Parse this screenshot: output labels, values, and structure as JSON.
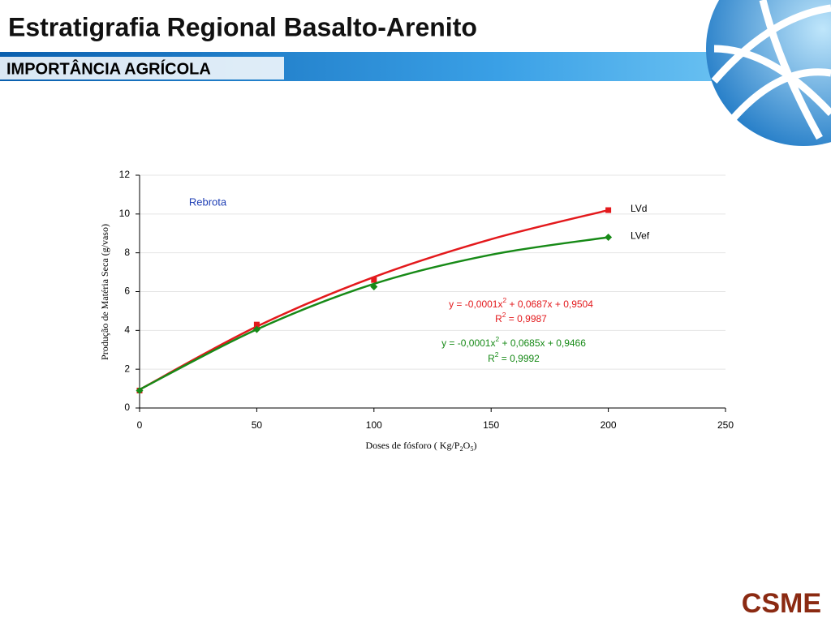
{
  "header": {
    "title": "Estratigrafia Regional Basalto-Arenito",
    "subtitle": "IMPORTÂNCIA AGRÍCOLA"
  },
  "logo": "CSME",
  "chart_data": {
    "type": "scatter",
    "annotation": "Rebrota",
    "x_label": [
      "Doses de fósforo ( Kg/P",
      "2",
      "O",
      "5",
      ")"
    ],
    "y_label": "Produção de Matéria Seca (g/vaso)",
    "xlim": [
      0,
      250
    ],
    "xticks": [
      0,
      50,
      100,
      150,
      200,
      250
    ],
    "ylim": [
      0,
      12
    ],
    "yticks": [
      0,
      2,
      4,
      6,
      8,
      10,
      12
    ],
    "grid": true,
    "series": [
      {
        "name": "LVd",
        "color": "#e3191c",
        "marker": "square",
        "x": [
          0,
          50,
          100,
          200
        ],
        "values": [
          0.9,
          4.3,
          6.6,
          10.2
        ],
        "trendline": {
          "x": [
            0,
            50,
            100,
            150,
            200
          ],
          "values": [
            0.95,
            4.2,
            6.75,
            8.7,
            10.2
          ]
        },
        "equation": [
          "y = -0,0001x",
          "2",
          " + 0,0687x + 0,9504"
        ],
        "r2": [
          "R",
          "2",
          " = 0,9987"
        ]
      },
      {
        "name": "LVef",
        "color": "#178a17",
        "marker": "diamond",
        "x": [
          0,
          50,
          100,
          200
        ],
        "values": [
          0.9,
          4.05,
          6.25,
          8.8
        ],
        "trendline": {
          "x": [
            0,
            50,
            100,
            150,
            200
          ],
          "values": [
            0.95,
            4.05,
            6.4,
            7.9,
            8.8
          ]
        },
        "equation": [
          "y = -0,0001x",
          "2",
          " + 0,0685x + 0,9466"
        ],
        "r2": [
          "R",
          "2",
          " = 0,9992"
        ]
      }
    ]
  }
}
